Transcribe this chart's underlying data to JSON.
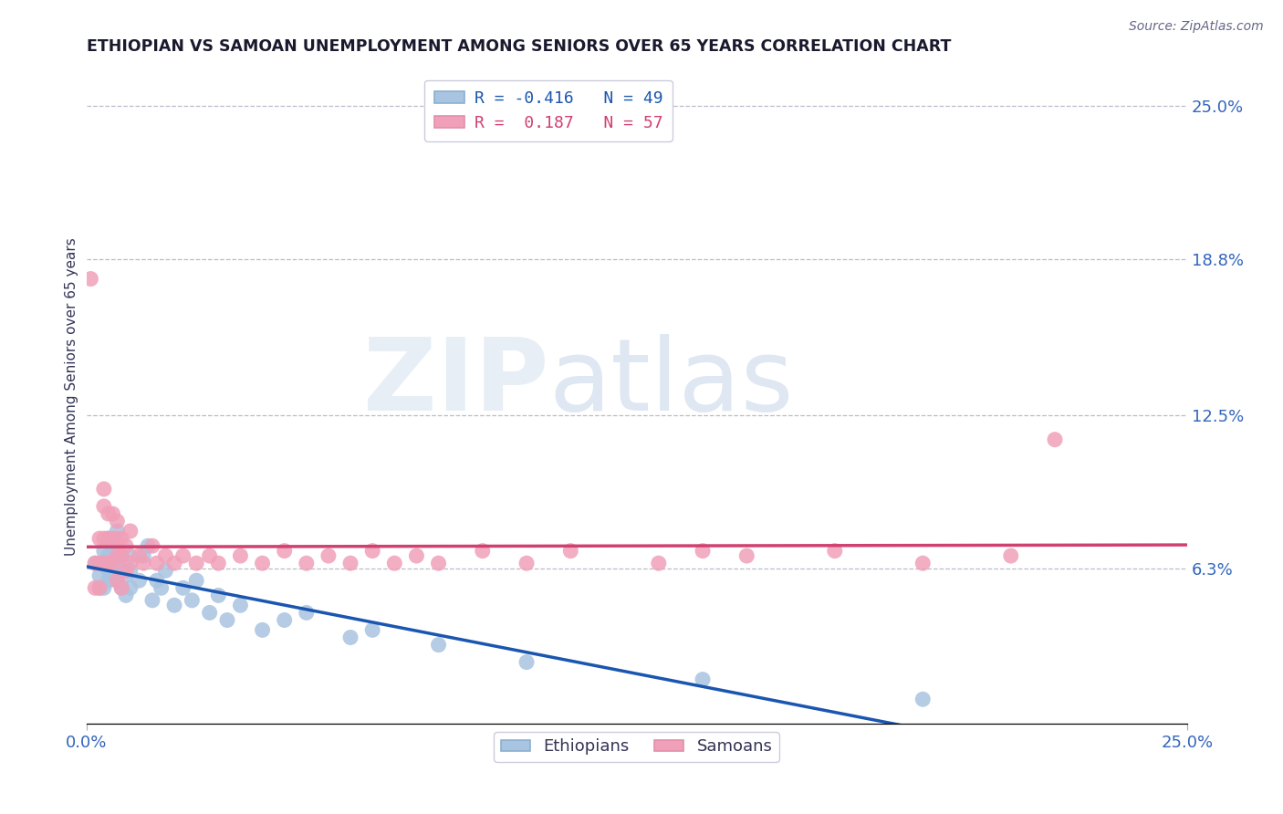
{
  "title": "ETHIOPIAN VS SAMOAN UNEMPLOYMENT AMONG SENIORS OVER 65 YEARS CORRELATION CHART",
  "source": "Source: ZipAtlas.com",
  "ylabel": "Unemployment Among Seniors over 65 years",
  "xlim": [
    0.0,
    0.25
  ],
  "ylim": [
    0.0,
    0.265
  ],
  "right_ytick_labels": [
    "25.0%",
    "18.8%",
    "12.5%",
    "6.3%"
  ],
  "right_ytick_positions": [
    0.25,
    0.188,
    0.125,
    0.063
  ],
  "color_ethiopians": "#a8c4e0",
  "color_samoans": "#f0a0b8",
  "line_color_ethiopians": "#1a56b0",
  "line_color_samoans": "#d04070",
  "ethiopians_x": [
    0.002,
    0.003,
    0.003,
    0.004,
    0.004,
    0.004,
    0.005,
    0.005,
    0.005,
    0.005,
    0.006,
    0.006,
    0.006,
    0.007,
    0.007,
    0.007,
    0.007,
    0.008,
    0.008,
    0.008,
    0.009,
    0.009,
    0.01,
    0.01,
    0.01,
    0.012,
    0.013,
    0.014,
    0.015,
    0.016,
    0.017,
    0.018,
    0.02,
    0.022,
    0.024,
    0.025,
    0.028,
    0.03,
    0.032,
    0.035,
    0.04,
    0.045,
    0.05,
    0.06,
    0.065,
    0.08,
    0.1,
    0.14,
    0.19
  ],
  "ethiopians_y": [
    0.065,
    0.06,
    0.055,
    0.07,
    0.065,
    0.055,
    0.075,
    0.068,
    0.062,
    0.058,
    0.072,
    0.065,
    0.06,
    0.078,
    0.07,
    0.065,
    0.058,
    0.068,
    0.062,
    0.055,
    0.06,
    0.052,
    0.068,
    0.062,
    0.055,
    0.058,
    0.068,
    0.072,
    0.05,
    0.058,
    0.055,
    0.062,
    0.048,
    0.055,
    0.05,
    0.058,
    0.045,
    0.052,
    0.042,
    0.048,
    0.038,
    0.042,
    0.045,
    0.035,
    0.038,
    0.032,
    0.025,
    0.018,
    0.01
  ],
  "samoans_x": [
    0.001,
    0.002,
    0.002,
    0.003,
    0.003,
    0.003,
    0.004,
    0.004,
    0.004,
    0.004,
    0.005,
    0.005,
    0.005,
    0.006,
    0.006,
    0.006,
    0.007,
    0.007,
    0.007,
    0.007,
    0.008,
    0.008,
    0.008,
    0.009,
    0.009,
    0.01,
    0.01,
    0.012,
    0.013,
    0.015,
    0.016,
    0.018,
    0.02,
    0.022,
    0.025,
    0.028,
    0.03,
    0.035,
    0.04,
    0.045,
    0.05,
    0.055,
    0.06,
    0.065,
    0.07,
    0.075,
    0.08,
    0.09,
    0.1,
    0.11,
    0.13,
    0.14,
    0.15,
    0.17,
    0.19,
    0.21,
    0.22
  ],
  "samoans_y": [
    0.18,
    0.065,
    0.055,
    0.075,
    0.065,
    0.055,
    0.095,
    0.088,
    0.075,
    0.065,
    0.085,
    0.075,
    0.065,
    0.085,
    0.075,
    0.065,
    0.082,
    0.075,
    0.068,
    0.058,
    0.075,
    0.068,
    0.055,
    0.072,
    0.062,
    0.078,
    0.065,
    0.068,
    0.065,
    0.072,
    0.065,
    0.068,
    0.065,
    0.068,
    0.065,
    0.068,
    0.065,
    0.068,
    0.065,
    0.07,
    0.065,
    0.068,
    0.065,
    0.07,
    0.065,
    0.068,
    0.065,
    0.07,
    0.065,
    0.07,
    0.065,
    0.07,
    0.068,
    0.07,
    0.065,
    0.068,
    0.115
  ]
}
